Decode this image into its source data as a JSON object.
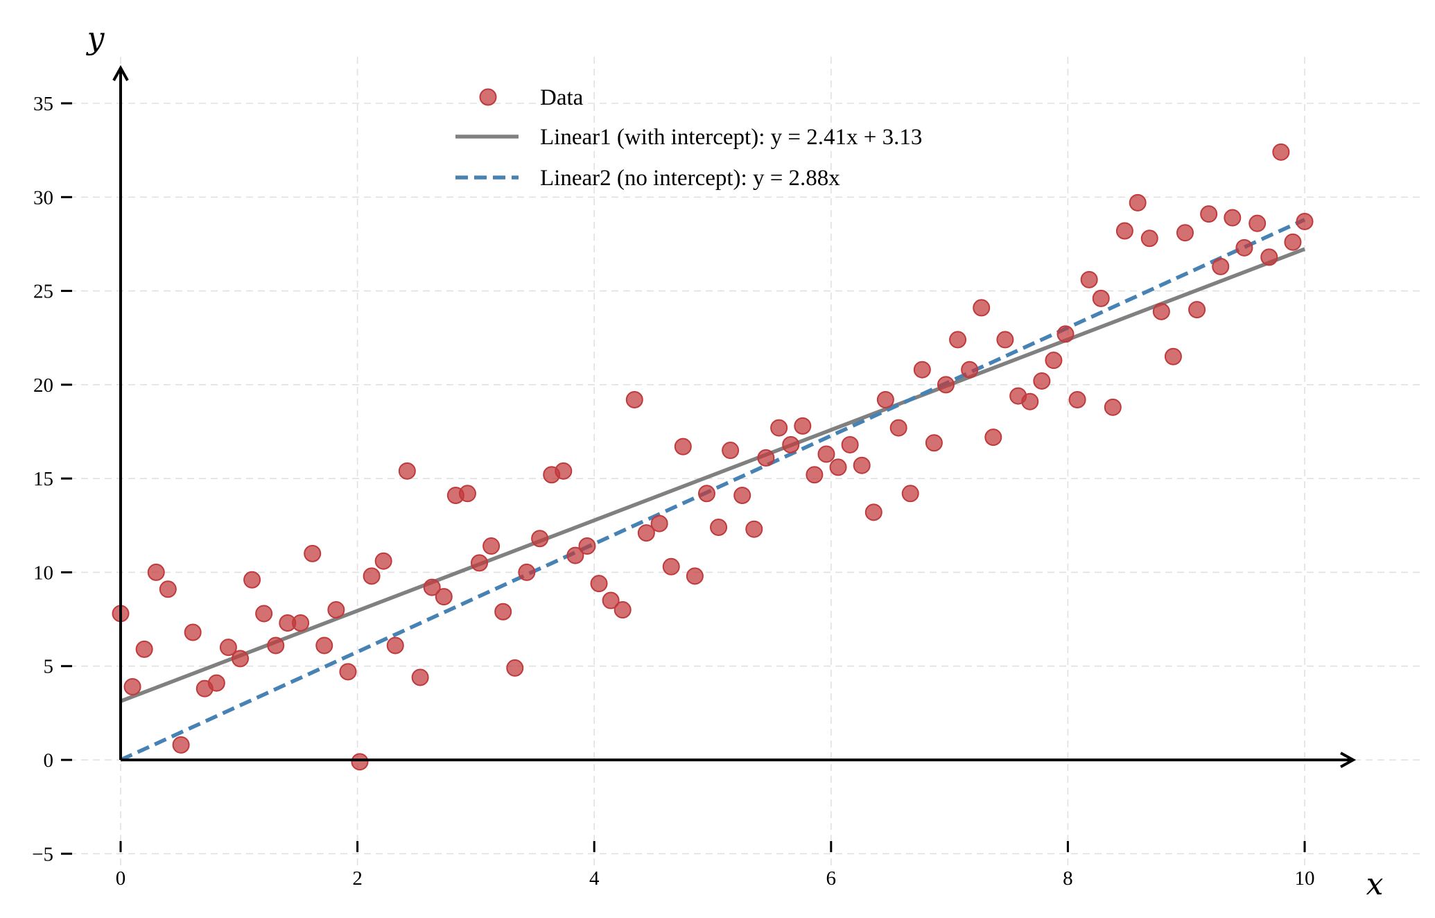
{
  "chart_data": {
    "type": "scatter",
    "xlabel": "x",
    "ylabel": "y",
    "xlim": [
      -0.5,
      10.5
    ],
    "ylim": [
      -5,
      37
    ],
    "xticks": [
      0,
      2,
      4,
      6,
      8,
      10
    ],
    "yticks": [
      -5,
      0,
      5,
      10,
      15,
      20,
      25,
      30,
      35
    ],
    "grid": true,
    "legend_position": "top-center",
    "colors": {
      "data": "#c0393b",
      "linear1": "#808080",
      "linear2": "#4682b4"
    },
    "series": [
      {
        "name": "Data",
        "kind": "scatter",
        "x": [
          0.0,
          0.1,
          0.2,
          0.3,
          0.4,
          0.51,
          0.61,
          0.71,
          0.81,
          0.91,
          1.01,
          1.11,
          1.21,
          1.31,
          1.41,
          1.52,
          1.62,
          1.72,
          1.82,
          1.92,
          2.02,
          2.12,
          2.22,
          2.32,
          2.42,
          2.53,
          2.63,
          2.73,
          2.83,
          2.93,
          3.03,
          3.13,
          3.23,
          3.33,
          3.43,
          3.54,
          3.64,
          3.74,
          3.84,
          3.94,
          4.04,
          4.14,
          4.24,
          4.34,
          4.44,
          4.55,
          4.65,
          4.75,
          4.85,
          4.95,
          5.05,
          5.15,
          5.25,
          5.35,
          5.45,
          5.56,
          5.66,
          5.76,
          5.86,
          5.96,
          6.06,
          6.16,
          6.26,
          6.36,
          6.46,
          6.57,
          6.67,
          6.77,
          6.87,
          6.97,
          7.07,
          7.17,
          7.27,
          7.37,
          7.47,
          7.58,
          7.68,
          7.78,
          7.88,
          7.98,
          8.08,
          8.18,
          8.28,
          8.38,
          8.48,
          8.59,
          8.69,
          8.79,
          8.89,
          8.99,
          9.09,
          9.19,
          9.29,
          9.39,
          9.49,
          9.6,
          9.7,
          9.8,
          9.9,
          10.0
        ],
        "y": [
          7.8,
          3.9,
          5.9,
          10.0,
          9.1,
          0.8,
          6.8,
          3.8,
          4.1,
          6.0,
          5.4,
          9.6,
          7.8,
          6.1,
          7.3,
          7.3,
          11.0,
          6.1,
          8.0,
          4.7,
          -0.1,
          9.8,
          10.6,
          6.1,
          15.4,
          4.4,
          9.2,
          8.7,
          14.1,
          14.2,
          10.5,
          11.4,
          7.9,
          4.9,
          10.0,
          11.8,
          15.2,
          15.4,
          10.9,
          11.4,
          9.4,
          8.5,
          8.0,
          19.2,
          12.1,
          12.6,
          10.3,
          16.7,
          9.8,
          14.2,
          12.4,
          16.5,
          14.1,
          12.3,
          16.1,
          17.7,
          16.8,
          17.8,
          15.2,
          16.3,
          15.6,
          16.8,
          15.7,
          13.2,
          19.2,
          17.7,
          14.2,
          20.8,
          16.9,
          20.0,
          22.4,
          20.8,
          24.1,
          17.2,
          22.4,
          19.4,
          19.1,
          20.2,
          21.3,
          22.7,
          19.2,
          25.6,
          24.6,
          18.8,
          28.2,
          29.7,
          27.8,
          23.9,
          21.5,
          28.1,
          24.0,
          29.1,
          26.3,
          28.9,
          27.3,
          28.6,
          26.8,
          32.4,
          27.6,
          28.7
        ]
      },
      {
        "name": "Linear1 (with intercept): y = 2.41x + 3.13",
        "kind": "line",
        "style": "solid",
        "slope": 2.41,
        "intercept": 3.13,
        "x": [
          0,
          10
        ],
        "y": [
          3.13,
          27.23
        ]
      },
      {
        "name": "Linear2 (no intercept): y = 2.88x",
        "kind": "line",
        "style": "dashed",
        "slope": 2.88,
        "intercept": 0,
        "x": [
          0,
          10
        ],
        "y": [
          0,
          28.8
        ]
      }
    ]
  }
}
